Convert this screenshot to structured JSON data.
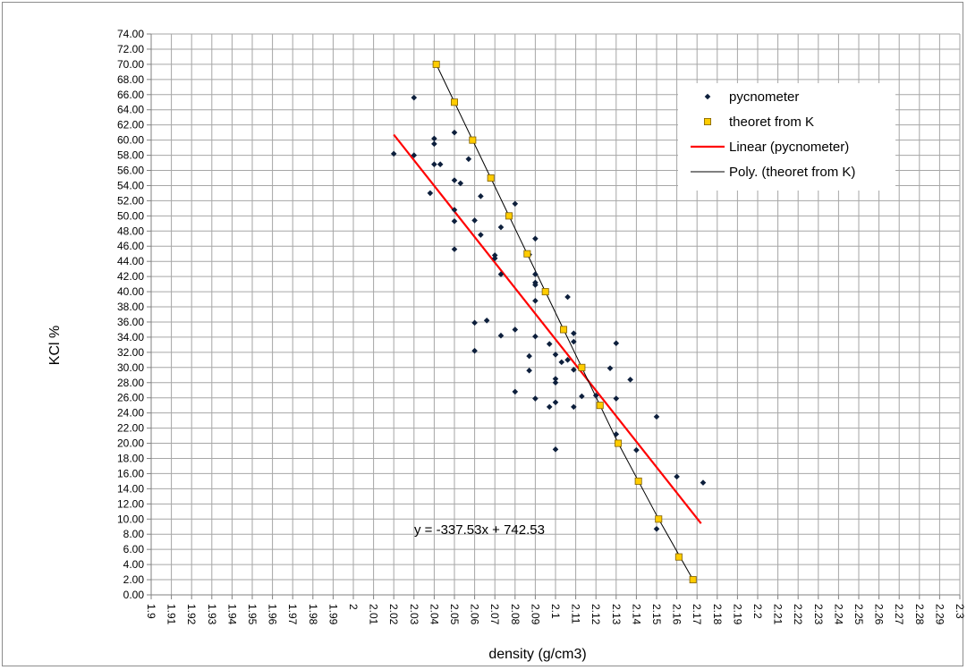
{
  "chart_data": {
    "type": "scatter",
    "title": "",
    "xlabel": "density (g/cm3)",
    "ylabel": "KCl %",
    "xlim": [
      1.9,
      2.3
    ],
    "ylim": [
      0,
      74
    ],
    "x_ticks": [
      "1.9",
      "1.91",
      "1.92",
      "1.93",
      "1.94",
      "1.95",
      "1.96",
      "1.97",
      "1.98",
      "1.99",
      "2",
      "2.01",
      "2.02",
      "2.03",
      "2.04",
      "2.05",
      "2.06",
      "2.07",
      "2.08",
      "2.09",
      "2.1",
      "2.11",
      "2.12",
      "2.13",
      "2.14",
      "2.15",
      "2.16",
      "2.17",
      "2.18",
      "2.19",
      "2.2",
      "2.21",
      "2.22",
      "2.23",
      "2.24",
      "2.25",
      "2.26",
      "2.27",
      "2.28",
      "2.29",
      "2.3"
    ],
    "y_ticks": [
      "0.00",
      "2.00",
      "4.00",
      "6.00",
      "8.00",
      "10.00",
      "12.00",
      "14.00",
      "16.00",
      "18.00",
      "20.00",
      "22.00",
      "24.00",
      "26.00",
      "28.00",
      "30.00",
      "32.00",
      "34.00",
      "36.00",
      "38.00",
      "40.00",
      "42.00",
      "44.00",
      "46.00",
      "48.00",
      "50.00",
      "52.00",
      "54.00",
      "56.00",
      "58.00",
      "60.00",
      "62.00",
      "64.00",
      "66.00",
      "68.00",
      "70.00",
      "72.00",
      "74.00"
    ],
    "grid": true,
    "legend_position": "top-right",
    "annotation": "y = -337.53x + 742.53",
    "series": [
      {
        "name": "pycnometer",
        "type": "scatter",
        "marker": "diamond",
        "color": "#0d1f3c",
        "points": [
          [
            2.02,
            58.2
          ],
          [
            2.03,
            58.0
          ],
          [
            2.03,
            65.6
          ],
          [
            2.038,
            53.0
          ],
          [
            2.04,
            60.2
          ],
          [
            2.04,
            59.5
          ],
          [
            2.04,
            56.8
          ],
          [
            2.043,
            56.8
          ],
          [
            2.05,
            61.0
          ],
          [
            2.05,
            54.7
          ],
          [
            2.05,
            50.8
          ],
          [
            2.05,
            49.3
          ],
          [
            2.05,
            45.6
          ],
          [
            2.053,
            54.3
          ],
          [
            2.057,
            57.5
          ],
          [
            2.06,
            49.4
          ],
          [
            2.06,
            35.9
          ],
          [
            2.06,
            32.2
          ],
          [
            2.063,
            52.6
          ],
          [
            2.063,
            47.5
          ],
          [
            2.066,
            36.2
          ],
          [
            2.07,
            44.8
          ],
          [
            2.07,
            44.4
          ],
          [
            2.073,
            42.3
          ],
          [
            2.073,
            34.2
          ],
          [
            2.073,
            48.5
          ],
          [
            2.08,
            51.6
          ],
          [
            2.08,
            35.0
          ],
          [
            2.08,
            26.8
          ],
          [
            2.087,
            44.9
          ],
          [
            2.087,
            31.5
          ],
          [
            2.087,
            29.6
          ],
          [
            2.09,
            47.0
          ],
          [
            2.09,
            42.3
          ],
          [
            2.09,
            41.2
          ],
          [
            2.09,
            40.9
          ],
          [
            2.09,
            38.8
          ],
          [
            2.09,
            34.1
          ],
          [
            2.09,
            25.9
          ],
          [
            2.097,
            33.1
          ],
          [
            2.097,
            24.8
          ],
          [
            2.1,
            31.7
          ],
          [
            2.1,
            28.5
          ],
          [
            2.1,
            28.0
          ],
          [
            2.1,
            25.4
          ],
          [
            2.1,
            19.2
          ],
          [
            2.103,
            30.7
          ],
          [
            2.106,
            39.3
          ],
          [
            2.106,
            31.0
          ],
          [
            2.109,
            34.5
          ],
          [
            2.109,
            33.4
          ],
          [
            2.109,
            29.7
          ],
          [
            2.109,
            24.8
          ],
          [
            2.113,
            26.2
          ],
          [
            2.12,
            26.3
          ],
          [
            2.127,
            29.9
          ],
          [
            2.13,
            33.2
          ],
          [
            2.13,
            25.9
          ],
          [
            2.13,
            21.2
          ],
          [
            2.137,
            28.4
          ],
          [
            2.14,
            19.1
          ],
          [
            2.15,
            23.5
          ],
          [
            2.15,
            8.7
          ],
          [
            2.16,
            15.6
          ],
          [
            2.173,
            14.8
          ]
        ]
      },
      {
        "name": "theoret from K",
        "type": "scatter",
        "marker": "square",
        "color": "#ffcc00",
        "stroke": "#7f6000",
        "points": [
          [
            2.041,
            70
          ],
          [
            2.05,
            65
          ],
          [
            2.059,
            60
          ],
          [
            2.068,
            55
          ],
          [
            2.077,
            50
          ],
          [
            2.086,
            45
          ],
          [
            2.095,
            40
          ],
          [
            2.104,
            35
          ],
          [
            2.113,
            30
          ],
          [
            2.122,
            25
          ],
          [
            2.131,
            20
          ],
          [
            2.141,
            15
          ],
          [
            2.151,
            10
          ],
          [
            2.161,
            5
          ],
          [
            2.168,
            2
          ]
        ]
      },
      {
        "name": "Linear (pycnometer)",
        "type": "line",
        "color": "#ff0000",
        "x": [
          2.02,
          2.172
        ],
        "slope": -337.53,
        "intercept": 742.53
      },
      {
        "name": "Poly. (theoret from K)",
        "type": "line",
        "color": "#000000",
        "points": [
          [
            2.041,
            70
          ],
          [
            2.059,
            60
          ],
          [
            2.077,
            50
          ],
          [
            2.095,
            40
          ],
          [
            2.113,
            30
          ],
          [
            2.131,
            20
          ],
          [
            2.151,
            10
          ],
          [
            2.168,
            2
          ]
        ]
      }
    ]
  }
}
